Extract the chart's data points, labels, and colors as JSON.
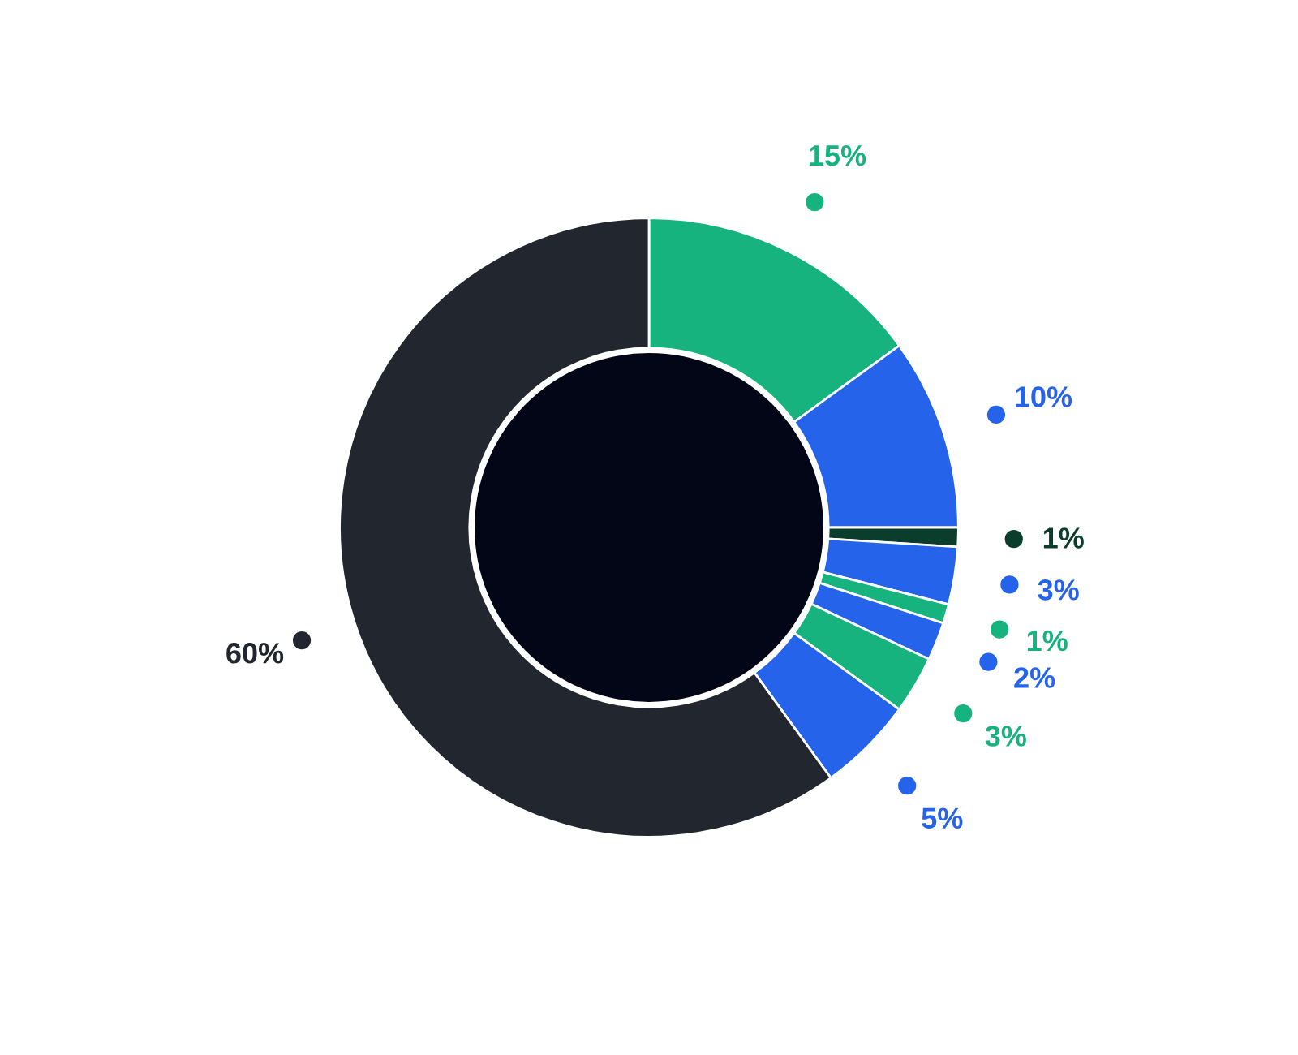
{
  "chart_data": {
    "type": "donut",
    "categories": [
      null,
      null,
      null,
      null,
      null,
      null,
      null,
      null,
      null
    ],
    "values": [
      15,
      10,
      1,
      3,
      1,
      2,
      3,
      5,
      60
    ],
    "colors": [
      "#16b37f",
      "#2563eb",
      "#0b3d2c",
      "#2563eb",
      "#16b37f",
      "#2563eb",
      "#16b37f",
      "#2563eb",
      "#22272f"
    ],
    "value_labels": [
      "15%",
      "10%",
      "1%",
      "3%",
      "1%",
      "2%",
      "3%",
      "5%",
      "60%"
    ]
  }
}
